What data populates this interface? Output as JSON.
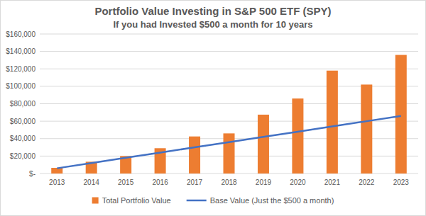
{
  "chart_data": {
    "type": "bar",
    "title": "Portfolio Value Investing in S&P 500 ETF (SPY)",
    "subtitle": "If you had Invested $500 a month for 10 years",
    "categories": [
      "2013",
      "2014",
      "2015",
      "2016",
      "2017",
      "2018",
      "2019",
      "2020",
      "2021",
      "2022",
      "2023"
    ],
    "series": [
      {
        "name": "Total Portfolio Value",
        "type": "bar",
        "color": "#ed7d31",
        "values": [
          6500,
          13500,
          20000,
          29000,
          42500,
          46000,
          67500,
          86000,
          118000,
          102000,
          136000
        ]
      },
      {
        "name": "Base Value (Just the $500 a month)",
        "type": "line",
        "color": "#4472c4",
        "values": [
          6000,
          12000,
          18000,
          24000,
          30000,
          36000,
          42000,
          48000,
          54000,
          60000,
          66000
        ]
      }
    ],
    "ylim": [
      0,
      160000
    ],
    "yticks": [
      {
        "value": 0,
        "label": "$-"
      },
      {
        "value": 20000,
        "label": "$20,000"
      },
      {
        "value": 40000,
        "label": "$40,000"
      },
      {
        "value": 60000,
        "label": "$60,000"
      },
      {
        "value": 80000,
        "label": "$80,000"
      },
      {
        "value": 100000,
        "label": "$100,000"
      },
      {
        "value": 120000,
        "label": "$120,000"
      },
      {
        "value": 140000,
        "label": "$140,000"
      },
      {
        "value": 160000,
        "label": "$160,000"
      }
    ],
    "grid": true,
    "legend": "bottom"
  }
}
